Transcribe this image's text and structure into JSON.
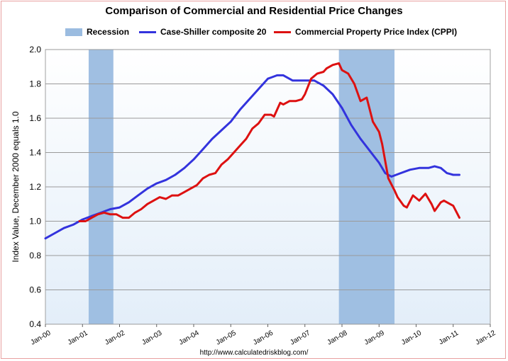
{
  "chart_data": {
    "type": "line",
    "title": "Comparison of Commercial and Residential Price Changes",
    "ylabel": "Index Value, December 2000 equals 1.0",
    "xlabel": "",
    "ylim": [
      0.4,
      2.0
    ],
    "yticks": [
      "0.4",
      "0.6",
      "0.8",
      "1.0",
      "1.2",
      "1.4",
      "1.6",
      "1.8",
      "2.0"
    ],
    "xlim": [
      2000.0,
      2012.0
    ],
    "xticks": [
      "Jan-00",
      "Jan-01",
      "Jan-02",
      "Jan-03",
      "Jan-04",
      "Jan-05",
      "Jan-06",
      "Jan-07",
      "Jan-08",
      "Jan-09",
      "Jan-10",
      "Jan-11",
      "Jan-12"
    ],
    "grid": "horizontal",
    "legend_position": "top",
    "legend": [
      "Recession",
      "Case-Shiller composite 20",
      "Commercial Property Price Index (CPPI)"
    ],
    "recessions": [
      {
        "name": "Recession",
        "start": "2001-03",
        "end": "2001-11",
        "color": "#9bbce0"
      },
      {
        "name": "Recession",
        "start": "2007-12",
        "end": "2009-06",
        "color": "#9bbce0"
      }
    ],
    "series": [
      {
        "name": "Case-Shiller composite 20",
        "color": "#3333dd",
        "x": [
          "2000-01",
          "2000-04",
          "2000-07",
          "2000-10",
          "2001-01",
          "2001-04",
          "2001-07",
          "2001-10",
          "2002-01",
          "2002-04",
          "2002-07",
          "2002-10",
          "2003-01",
          "2003-04",
          "2003-07",
          "2003-10",
          "2004-01",
          "2004-04",
          "2004-07",
          "2004-10",
          "2005-01",
          "2005-04",
          "2005-07",
          "2005-10",
          "2006-01",
          "2006-04",
          "2006-06",
          "2006-09",
          "2007-01",
          "2007-04",
          "2007-07",
          "2007-10",
          "2008-01",
          "2008-04",
          "2008-07",
          "2008-10",
          "2009-01",
          "2009-03",
          "2009-05",
          "2009-08",
          "2009-11",
          "2010-02",
          "2010-05",
          "2010-07",
          "2010-09",
          "2010-11",
          "2011-01",
          "2011-03"
        ],
        "y": [
          0.9,
          0.93,
          0.96,
          0.98,
          1.01,
          1.03,
          1.05,
          1.07,
          1.08,
          1.11,
          1.15,
          1.19,
          1.22,
          1.24,
          1.27,
          1.31,
          1.36,
          1.42,
          1.48,
          1.53,
          1.58,
          1.65,
          1.71,
          1.77,
          1.83,
          1.85,
          1.85,
          1.82,
          1.82,
          1.82,
          1.79,
          1.74,
          1.66,
          1.56,
          1.48,
          1.41,
          1.34,
          1.28,
          1.26,
          1.28,
          1.3,
          1.31,
          1.31,
          1.32,
          1.31,
          1.28,
          1.27,
          1.27
        ]
      },
      {
        "name": "Commercial Property Price Index (CPPI)",
        "color": "#dd1111",
        "x": [
          "2000-12",
          "2001-02",
          "2001-04",
          "2001-06",
          "2001-08",
          "2001-10",
          "2001-12",
          "2002-02",
          "2002-04",
          "2002-06",
          "2002-08",
          "2002-10",
          "2002-12",
          "2003-02",
          "2003-04",
          "2003-06",
          "2003-08",
          "2003-10",
          "2003-12",
          "2004-02",
          "2004-04",
          "2004-06",
          "2004-08",
          "2004-10",
          "2004-12",
          "2005-02",
          "2005-04",
          "2005-06",
          "2005-08",
          "2005-10",
          "2005-12",
          "2006-02",
          "2006-03",
          "2006-05",
          "2006-06",
          "2006-08",
          "2006-10",
          "2006-12",
          "2007-01",
          "2007-03",
          "2007-05",
          "2007-07",
          "2007-08",
          "2007-10",
          "2007-12",
          "2008-01",
          "2008-03",
          "2008-05",
          "2008-07",
          "2008-09",
          "2008-11",
          "2009-01",
          "2009-02",
          "2009-04",
          "2009-06",
          "2009-07",
          "2009-09",
          "2009-10",
          "2009-12",
          "2010-02",
          "2010-04",
          "2010-06",
          "2010-07",
          "2010-09",
          "2010-10",
          "2010-12",
          "2011-01",
          "2011-03"
        ],
        "y": [
          1.0,
          1.0,
          1.02,
          1.04,
          1.05,
          1.04,
          1.04,
          1.02,
          1.02,
          1.05,
          1.07,
          1.1,
          1.12,
          1.14,
          1.13,
          1.15,
          1.15,
          1.17,
          1.19,
          1.21,
          1.25,
          1.27,
          1.28,
          1.33,
          1.36,
          1.4,
          1.44,
          1.48,
          1.54,
          1.57,
          1.62,
          1.62,
          1.61,
          1.69,
          1.68,
          1.7,
          1.7,
          1.71,
          1.74,
          1.83,
          1.86,
          1.87,
          1.89,
          1.91,
          1.92,
          1.88,
          1.86,
          1.8,
          1.7,
          1.72,
          1.58,
          1.52,
          1.45,
          1.25,
          1.18,
          1.14,
          1.09,
          1.08,
          1.15,
          1.12,
          1.16,
          1.1,
          1.06,
          1.11,
          1.12,
          1.1,
          1.09,
          1.02
        ]
      }
    ]
  },
  "source_text": "http://www.calculatedriskblog.com/"
}
